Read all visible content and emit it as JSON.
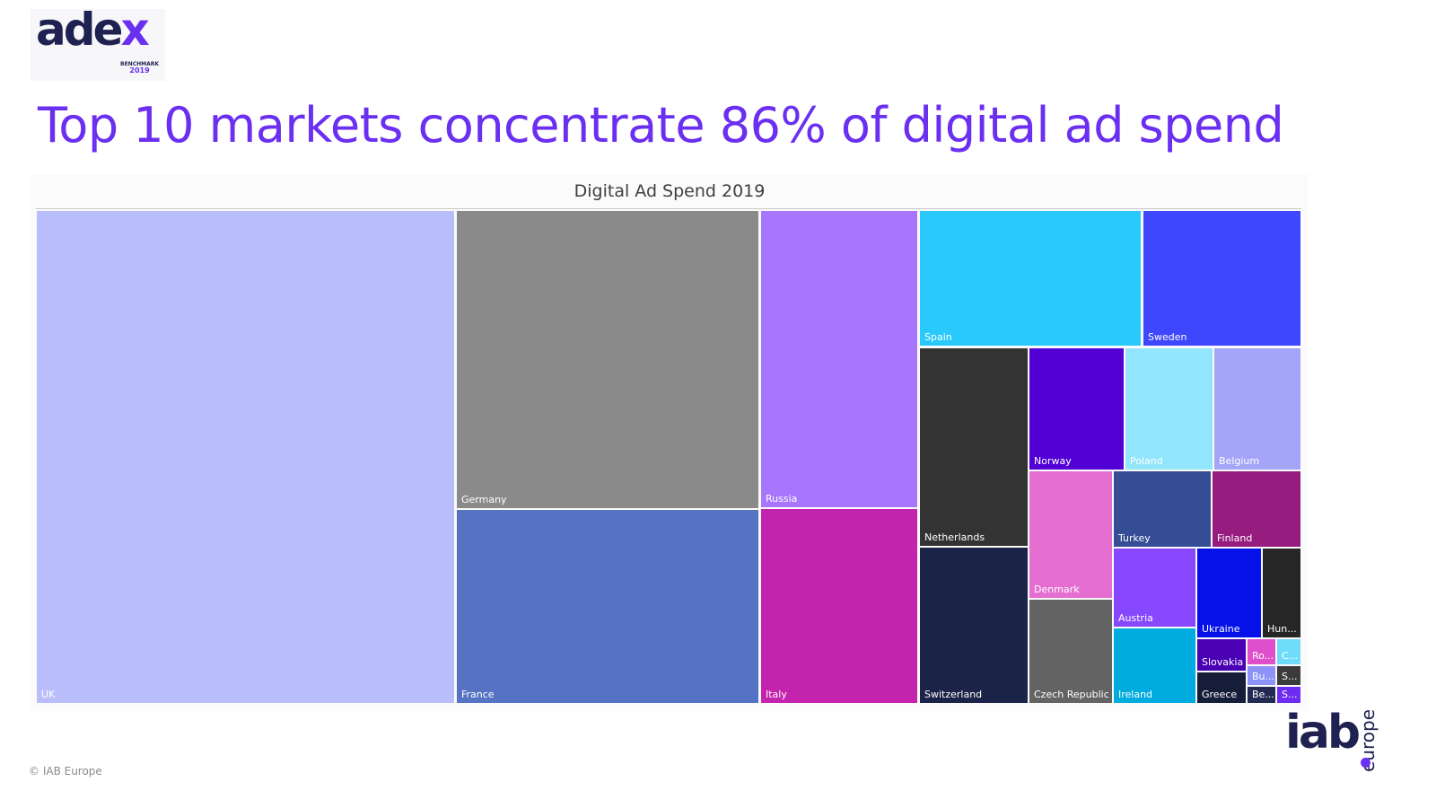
{
  "logo": {
    "name": "adex",
    "prefix": "ade",
    "accent": "x",
    "subline": "BENCHMARK",
    "year": "2019"
  },
  "slide": {
    "title": "Top 10 markets concentrate 86% of digital ad spend",
    "footer": "© IAB Europe"
  },
  "brand_logo": {
    "name": "iab europe",
    "main": "iab",
    "side": "europe"
  },
  "colors": {
    "title": "#6a2ff0",
    "logo_dark": "#1f2150"
  },
  "chart_data": {
    "type": "treemap",
    "title": "Digital Ad Spend 2019",
    "items": [
      {
        "name": "UK",
        "label": "UK",
        "value": 32.8,
        "color": "#babdfb"
      },
      {
        "name": "Germany",
        "label": "Germany",
        "value": 15.1,
        "color": "#8a8a8a"
      },
      {
        "name": "France",
        "label": "France",
        "value": 9.8,
        "color": "#5573c2"
      },
      {
        "name": "Russia",
        "label": "Russia",
        "value": 7.5,
        "color": "#a776fc"
      },
      {
        "name": "Italy",
        "label": "Italy",
        "value": 5.5,
        "color": "#c423ad"
      },
      {
        "name": "Spain",
        "label": "Spain",
        "value": 4.8,
        "color": "#2ac9fc"
      },
      {
        "name": "Sweden",
        "label": "Sweden",
        "value": 3.4,
        "color": "#3f47fc"
      },
      {
        "name": "Netherlands",
        "label": "Netherlands",
        "value": 3.4,
        "color": "#333333"
      },
      {
        "name": "Switzerland",
        "label": "Switzerland",
        "value": 2.2,
        "color": "#1b2448"
      },
      {
        "name": "Norway",
        "label": "Norway",
        "value": 1.8,
        "color": "#5200d6"
      },
      {
        "name": "Poland",
        "label": "Poland",
        "value": 1.7,
        "color": "#91e5fc"
      },
      {
        "name": "Belgium",
        "label": "Belgium",
        "value": 1.7,
        "color": "#a4a4f8"
      },
      {
        "name": "Denmark",
        "label": "Denmark",
        "value": 1.7,
        "color": "#e56ed1"
      },
      {
        "name": "Czech Republic",
        "label": "Czech Republic",
        "value": 1.4,
        "color": "#636363"
      },
      {
        "name": "Turkey",
        "label": "Turkey",
        "value": 1.1,
        "color": "#344d94"
      },
      {
        "name": "Finland",
        "label": "Finland",
        "value": 1.1,
        "color": "#961c7f"
      },
      {
        "name": "Austria",
        "label": "Austria",
        "value": 1.0,
        "color": "#8747fc"
      },
      {
        "name": "Ireland",
        "label": "Ireland",
        "value": 1.0,
        "color": "#00acdf"
      },
      {
        "name": "Ukraine",
        "label": "Ukraine",
        "value": 0.87,
        "color": "#0511e8"
      },
      {
        "name": "Hungary",
        "label": "Hun...",
        "value": 0.52,
        "color": "#262626"
      },
      {
        "name": "Slovakia",
        "label": "Slovakia",
        "value": 0.31,
        "color": "#4a00b3"
      },
      {
        "name": "Greece",
        "label": "Greece",
        "value": 0.31,
        "color": "#161d38"
      },
      {
        "name": "Romania",
        "label": "Ro...",
        "value": 0.16,
        "color": "#e04fcb"
      },
      {
        "name": "Bulgaria",
        "label": "Bu...",
        "value": 0.12,
        "color": "#8e93fc"
      },
      {
        "name": "Belarus",
        "label": "Be...",
        "value": 0.12,
        "color": "#232a52"
      },
      {
        "name": "Croatia",
        "label": "C...",
        "value": 0.12,
        "color": "#6fdcfb"
      },
      {
        "name": "Serbia",
        "label": "S...",
        "value": 0.12,
        "color": "#3b3b3b"
      },
      {
        "name": "Slovenia",
        "label": "S...",
        "value": 0.08,
        "color": "#6e2cf2"
      }
    ]
  }
}
